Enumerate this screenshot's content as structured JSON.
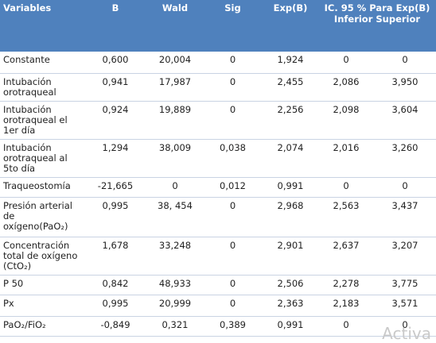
{
  "table": {
    "header": [
      "Variables",
      "B",
      "Wald",
      "Sig",
      "Exp(B)",
      "IC. 95 % Para Exp(B) Inferior Superior"
    ],
    "rows": [
      [
        "Constante",
        "0,600",
        "20,004",
        "0",
        "1,924",
        "0",
        "0"
      ],
      [
        "Intubación orotraqueal",
        "0,941",
        "17,987",
        "0",
        "2,455",
        "2,086",
        "3,950"
      ],
      [
        "Intubación orotraqueal el 1er día",
        "0,924",
        "19,889",
        "0",
        "2,256",
        "2,098",
        "3,604"
      ],
      [
        "Intubación orotraqueal al 5to día",
        "1,294",
        "38,009",
        "0,038",
        "2,074",
        "2,016",
        "3,260"
      ],
      [
        "Traqueostomía",
        "-21,665",
        "0",
        "0,012",
        "0,991",
        "0",
        "0"
      ],
      [
        "Presión arterial de oxígeno(PaO₂)",
        "0,995",
        "38, 454",
        "0",
        "2,968",
        "2,563",
        "3,437"
      ],
      [
        "Concentración total de oxígeno (CtO₂)",
        "1,678",
        "33,248",
        "0",
        "2,901",
        "2,637",
        "3,207"
      ],
      [
        "P 50",
        "0,842",
        "48,933",
        "0",
        "2,506",
        "2,278",
        "3,775"
      ],
      [
        "Px",
        "0,995",
        "20,999",
        "0",
        "2,363",
        "2,183",
        "3,571"
      ],
      [
        "PaO₂/FiO₂",
        "-0,849",
        "0,321",
        "0,389",
        "0,991",
        "0",
        "0"
      ]
    ]
  },
  "watermark": "Activa"
}
